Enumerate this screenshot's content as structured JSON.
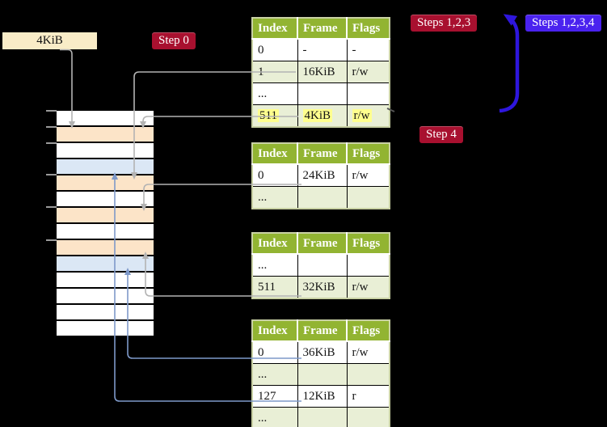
{
  "labels": {
    "page_size": "4KiB",
    "step0": "Step 0",
    "steps123": "Steps 1,2,3",
    "steps1234": "Steps 1,2,3,4",
    "step4": "Step 4"
  },
  "colors": {
    "badge_red": "#a8102f",
    "badge_blue": "#4a22ef",
    "table_header_green": "#92b432",
    "table_row_green": "#e9efd6",
    "memory_frame_peach": "#fce4c8",
    "memory_frame_blue": "#dbe7f5",
    "page_size_label_cream": "#f9ecc7",
    "highlight_yellow": "#ffff8e",
    "connector_gray": "#b3b3b3",
    "connector_blue": "#7e99c9",
    "loop_arrow_blue": "#2e16dd"
  },
  "memory": {
    "rows": [
      "white",
      "peach",
      "white",
      "blue",
      "peach",
      "white",
      "peach",
      "white",
      "peach",
      "blue",
      "white",
      "white",
      "white",
      "white"
    ]
  },
  "tables": [
    {
      "headers": [
        "Index",
        "Frame",
        "Flags"
      ],
      "rows": [
        {
          "cells": [
            "0",
            "-",
            "-"
          ],
          "shade": false,
          "highlight": false
        },
        {
          "cells": [
            "1",
            "16KiB",
            "r/w"
          ],
          "shade": true,
          "highlight": false
        },
        {
          "cells": [
            "...",
            "",
            ""
          ],
          "shade": false,
          "highlight": false
        },
        {
          "cells": [
            "511",
            "4KiB",
            "r/w"
          ],
          "shade": true,
          "highlight": true
        }
      ]
    },
    {
      "headers": [
        "Index",
        "Frame",
        "Flags"
      ],
      "rows": [
        {
          "cells": [
            "0",
            "24KiB",
            "r/w"
          ],
          "shade": false,
          "highlight": false
        },
        {
          "cells": [
            "...",
            "",
            ""
          ],
          "shade": true,
          "highlight": false
        }
      ]
    },
    {
      "headers": [
        "Index",
        "Frame",
        "Flags"
      ],
      "rows": [
        {
          "cells": [
            "...",
            "",
            ""
          ],
          "shade": false,
          "highlight": false
        },
        {
          "cells": [
            "511",
            "32KiB",
            "r/w"
          ],
          "shade": true,
          "highlight": false
        }
      ]
    },
    {
      "headers": [
        "Index",
        "Frame",
        "Flags"
      ],
      "rows": [
        {
          "cells": [
            "0",
            "36KiB",
            "r/w"
          ],
          "shade": false,
          "highlight": false
        },
        {
          "cells": [
            "...",
            "",
            ""
          ],
          "shade": true,
          "highlight": false
        },
        {
          "cells": [
            "127",
            "12KiB",
            "r"
          ],
          "shade": false,
          "highlight": false
        },
        {
          "cells": [
            "...",
            "",
            ""
          ],
          "shade": true,
          "highlight": false
        }
      ]
    }
  ]
}
